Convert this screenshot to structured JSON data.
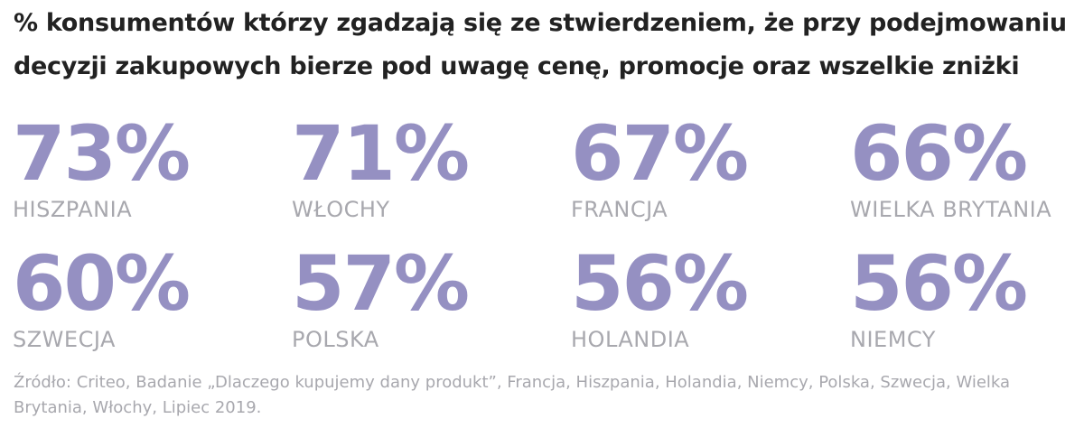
{
  "title": "% konsumentów którzy zgadzają się ze stwierdzeniem, że przy podejmowaniu decyzji zakupowych bierze pod uwagę cenę, promocje oraz wszelkie zniżki",
  "colors": {
    "number": "#9590c2",
    "label": "#a8a8ae",
    "title": "#222222"
  },
  "chart_data": {
    "type": "table",
    "title": "% konsumentów którzy zgadzają się ze stwierdzeniem, że przy podejmowaniu decyzji zakupowych bierze pod uwagę cenę, promocje oraz wszelkie zniżki",
    "categories": [
      "HISZPANIA",
      "WŁOCHY",
      "FRANCJA",
      "WIELKA BRYTANIA",
      "SZWECJA",
      "POLSKA",
      "HOLANDIA",
      "NIEMCY"
    ],
    "values": [
      73,
      71,
      67,
      66,
      60,
      57,
      56,
      56
    ],
    "display": [
      "73%",
      "71%",
      "67%",
      "66%",
      "60%",
      "57%",
      "56%",
      "56%"
    ]
  },
  "source": "Źródło: Criteo, Badanie „Dlaczego kupujemy dany produkt”, Francja, Hiszpania, Holandia, Niemcy, Polska, Szwecja, Wielka Brytania, Włochy, Lipiec 2019."
}
